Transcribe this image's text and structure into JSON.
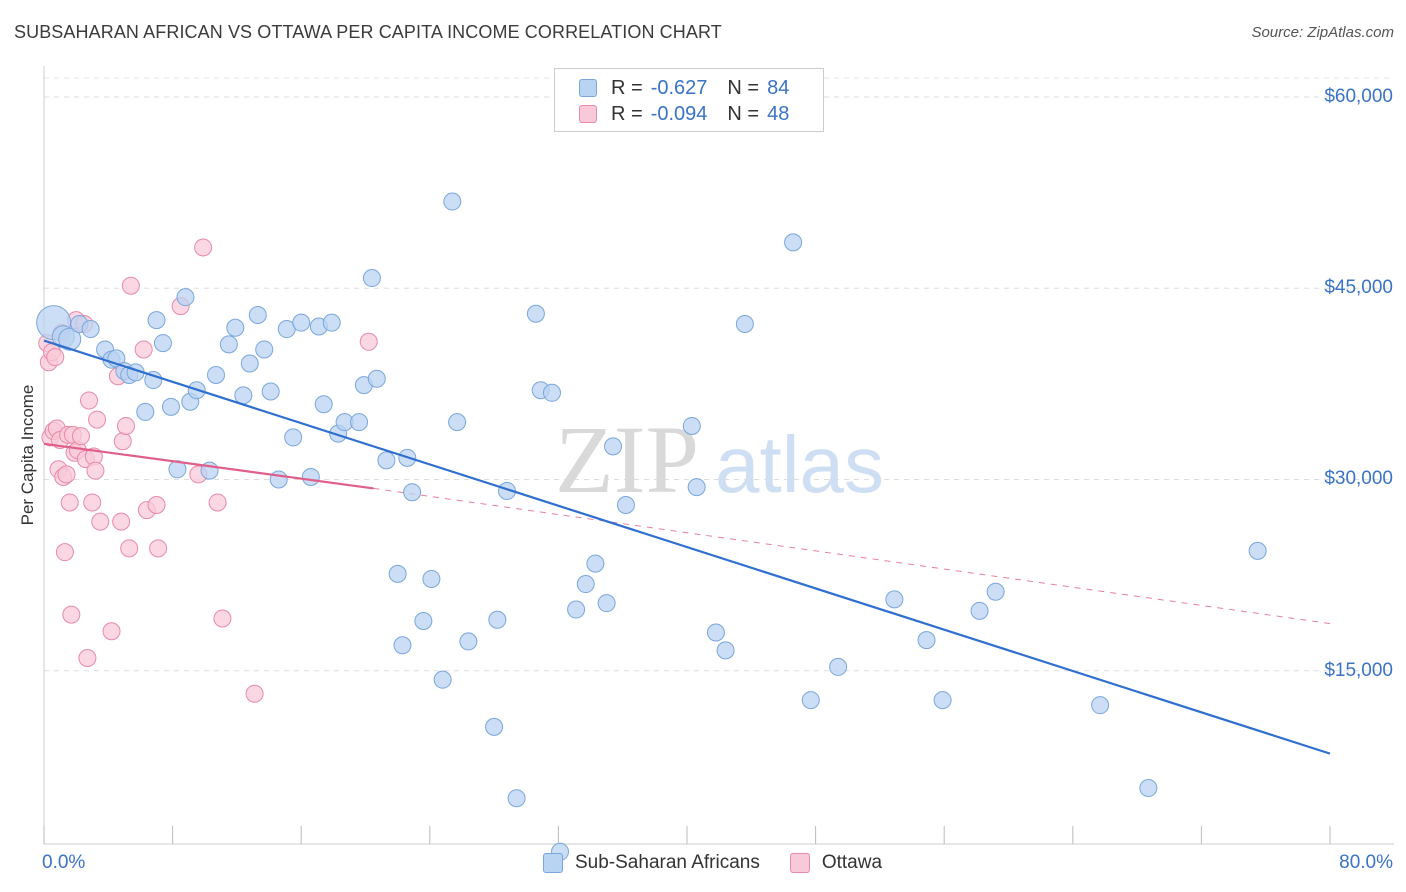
{
  "header": {
    "title": "SUBSAHARAN AFRICAN VS OTTAWA PER CAPITA INCOME CORRELATION CHART",
    "source": "Source: ZipAtlas.com"
  },
  "watermark": {
    "part1": "ZIP",
    "part2": "atlas"
  },
  "colors": {
    "blue_fill": "#b9d3f2",
    "blue_stroke": "#7aa6dc",
    "blue_line": "#2f6fcf",
    "pink_fill": "#f8c9d8",
    "pink_stroke": "#e98aa8",
    "pink_line": "#e05f8a",
    "axis_text": "#3a73c6"
  },
  "legend": {
    "rows": [
      {
        "r_label": "R =",
        "r_value": "-0.627",
        "n_label": "N =",
        "n_value": "84"
      },
      {
        "r_label": "R =",
        "r_value": "-0.094",
        "n_label": "N =",
        "n_value": "48"
      }
    ],
    "bottom": [
      "Sub-Saharan Africans",
      "Ottawa"
    ]
  },
  "chart_data": {
    "type": "scatter",
    "title": "SUBSAHARAN AFRICAN VS OTTAWA PER CAPITA INCOME CORRELATION CHART",
    "xlabel": "",
    "ylabel": "Per Capita Income",
    "xlim": [
      0,
      80
    ],
    "ylim": [
      0,
      62000
    ],
    "x_tick_labels": [
      "0.0%",
      "80.0%"
    ],
    "y_ticks": [
      15000,
      30000,
      45000,
      60000
    ],
    "y_tick_labels": [
      "$15,000",
      "$30,000",
      "$45,000",
      "$60,000"
    ],
    "grid": true,
    "series": [
      {
        "name": "Sub-Saharan Africans",
        "color": "#7aa6dc",
        "R": -0.627,
        "N": 84,
        "trendline": {
          "x": [
            0,
            80
          ],
          "y": [
            40900,
            8500
          ]
        },
        "points": [
          [
            0.6,
            42300
          ],
          [
            1.2,
            41200
          ],
          [
            1.6,
            41000
          ],
          [
            2.2,
            42200
          ],
          [
            2.9,
            41800
          ],
          [
            3.8,
            40200
          ],
          [
            4.2,
            39400
          ],
          [
            4.5,
            39500
          ],
          [
            5.0,
            38500
          ],
          [
            5.3,
            38200
          ],
          [
            5.7,
            38400
          ],
          [
            6.3,
            35300
          ],
          [
            6.8,
            37800
          ],
          [
            7.4,
            40700
          ],
          [
            7.9,
            35700
          ],
          [
            8.3,
            30800
          ],
          [
            8.8,
            44300
          ],
          [
            9.1,
            36100
          ],
          [
            9.5,
            37000
          ],
          [
            10.3,
            30700
          ],
          [
            10.7,
            38200
          ],
          [
            11.5,
            40600
          ],
          [
            11.9,
            41900
          ],
          [
            12.4,
            36600
          ],
          [
            12.8,
            39100
          ],
          [
            13.3,
            42900
          ],
          [
            14.1,
            36900
          ],
          [
            14.6,
            30000
          ],
          [
            15.1,
            41800
          ],
          [
            15.5,
            33300
          ],
          [
            16.0,
            42300
          ],
          [
            16.6,
            30200
          ],
          [
            17.1,
            42000
          ],
          [
            17.4,
            35900
          ],
          [
            17.9,
            42300
          ],
          [
            18.3,
            33600
          ],
          [
            18.7,
            34500
          ],
          [
            19.6,
            34500
          ],
          [
            19.9,
            37400
          ],
          [
            20.4,
            45800
          ],
          [
            20.7,
            37900
          ],
          [
            21.3,
            31500
          ],
          [
            22.6,
            31700
          ],
          [
            22.9,
            29000
          ],
          [
            23.6,
            18900
          ],
          [
            24.1,
            22200
          ],
          [
            24.8,
            14300
          ],
          [
            25.4,
            51800
          ],
          [
            25.7,
            34500
          ],
          [
            26.4,
            17300
          ],
          [
            28.0,
            10600
          ],
          [
            28.2,
            19000
          ],
          [
            28.8,
            29100
          ],
          [
            29.4,
            5000
          ],
          [
            30.6,
            43000
          ],
          [
            30.9,
            37000
          ],
          [
            31.6,
            36800
          ],
          [
            32.1,
            800
          ],
          [
            33.1,
            19800
          ],
          [
            33.7,
            21800
          ],
          [
            34.3,
            23400
          ],
          [
            35.0,
            20300
          ],
          [
            35.4,
            32600
          ],
          [
            36.2,
            28000
          ],
          [
            40.3,
            34200
          ],
          [
            40.6,
            29400
          ],
          [
            41.8,
            18000
          ],
          [
            42.4,
            16600
          ],
          [
            43.6,
            42200
          ],
          [
            46.6,
            48600
          ],
          [
            47.7,
            12700
          ],
          [
            49.4,
            15300
          ],
          [
            52.9,
            20600
          ],
          [
            54.9,
            17400
          ],
          [
            55.9,
            12700
          ],
          [
            58.2,
            19700
          ],
          [
            59.2,
            21200
          ],
          [
            65.7,
            12300
          ],
          [
            68.7,
            5800
          ],
          [
            75.5,
            24400
          ],
          [
            22.0,
            22600
          ],
          [
            22.3,
            17000
          ],
          [
            13.7,
            40200
          ],
          [
            7.0,
            42500
          ]
        ]
      },
      {
        "name": "Ottawa",
        "color": "#e98aa8",
        "R": -0.094,
        "N": 48,
        "trendline": {
          "x": [
            0,
            20.5
          ],
          "y": [
            32800,
            29300
          ],
          "dashed_extension": {
            "x": [
              20.5,
              80
            ],
            "y": [
              29300,
              18700
            ]
          }
        },
        "points": [
          [
            0.2,
            40700
          ],
          [
            0.3,
            39200
          ],
          [
            0.4,
            33300
          ],
          [
            0.5,
            40000
          ],
          [
            0.6,
            33800
          ],
          [
            0.8,
            34000
          ],
          [
            0.9,
            30800
          ],
          [
            1.0,
            33100
          ],
          [
            1.1,
            41500
          ],
          [
            1.2,
            30200
          ],
          [
            1.3,
            24300
          ],
          [
            1.4,
            30400
          ],
          [
            1.5,
            33500
          ],
          [
            1.6,
            28200
          ],
          [
            1.7,
            19400
          ],
          [
            1.8,
            33500
          ],
          [
            1.9,
            32100
          ],
          [
            2.0,
            42500
          ],
          [
            2.1,
            32300
          ],
          [
            2.3,
            33400
          ],
          [
            2.5,
            42200
          ],
          [
            2.6,
            31600
          ],
          [
            2.7,
            16000
          ],
          [
            2.8,
            36200
          ],
          [
            3.0,
            28200
          ],
          [
            3.1,
            31800
          ],
          [
            3.2,
            30700
          ],
          [
            3.3,
            34700
          ],
          [
            3.5,
            26700
          ],
          [
            4.2,
            18100
          ],
          [
            4.6,
            38100
          ],
          [
            4.8,
            26700
          ],
          [
            4.9,
            33000
          ],
          [
            5.1,
            34200
          ],
          [
            5.3,
            24600
          ],
          [
            5.4,
            45200
          ],
          [
            6.2,
            40200
          ],
          [
            6.4,
            27600
          ],
          [
            7.0,
            28000
          ],
          [
            7.1,
            24600
          ],
          [
            8.5,
            43600
          ],
          [
            9.6,
            30400
          ],
          [
            9.9,
            48200
          ],
          [
            10.8,
            28200
          ],
          [
            11.1,
            19100
          ],
          [
            13.1,
            13200
          ],
          [
            20.2,
            40800
          ],
          [
            0.7,
            39600
          ]
        ]
      }
    ]
  }
}
